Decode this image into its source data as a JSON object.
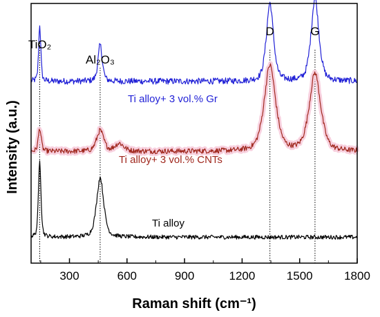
{
  "chart_data": {
    "type": "line",
    "title": "",
    "xlabel": "Raman shift (cm⁻¹)",
    "ylabel": "Intensity (a.u.)",
    "xlim": [
      100,
      1800
    ],
    "x_ticks": [
      300,
      600,
      900,
      1200,
      1500,
      1800
    ],
    "y_ticks": "none",
    "grid": false,
    "legend": "none",
    "peak_labels": [
      {
        "text": "TiO₂",
        "x": 145
      },
      {
        "text": "Al₂O₃",
        "x": 460
      },
      {
        "text": "D",
        "x": 1345
      },
      {
        "text": "G",
        "x": 1580
      }
    ],
    "series": [
      {
        "name": "Ti alloy+ 3 vol.% Gr",
        "color": "#1f1fd6",
        "baseline": 0.7,
        "noise": 0.012,
        "peaks": [
          {
            "x": 145,
            "height": 0.22,
            "width": 6
          },
          {
            "x": 460,
            "height": 0.14,
            "width": 12
          },
          {
            "x": 1345,
            "height": 0.3,
            "width": 20
          },
          {
            "x": 1580,
            "height": 0.32,
            "width": 22
          }
        ]
      },
      {
        "name": "Ti alloy+ 3 vol.% CNTs",
        "color": "#a0281e",
        "band_color": "#f7c9d9",
        "baseline": 0.43,
        "noise": 0.01,
        "peaks": [
          {
            "x": 145,
            "height": 0.09,
            "width": 8
          },
          {
            "x": 460,
            "height": 0.08,
            "width": 20
          },
          {
            "x": 560,
            "height": 0.03,
            "width": 25
          },
          {
            "x": 1345,
            "height": 0.33,
            "width": 32
          },
          {
            "x": 1580,
            "height": 0.3,
            "width": 32
          }
        ]
      },
      {
        "name": "Ti alloy",
        "color": "#000000",
        "baseline": 0.1,
        "noise": 0.008,
        "peaks": [
          {
            "x": 145,
            "height": 0.3,
            "width": 7
          },
          {
            "x": 460,
            "height": 0.23,
            "width": 20
          }
        ]
      }
    ],
    "dotted_guides_x": [
      145,
      460,
      1345,
      1580
    ]
  }
}
